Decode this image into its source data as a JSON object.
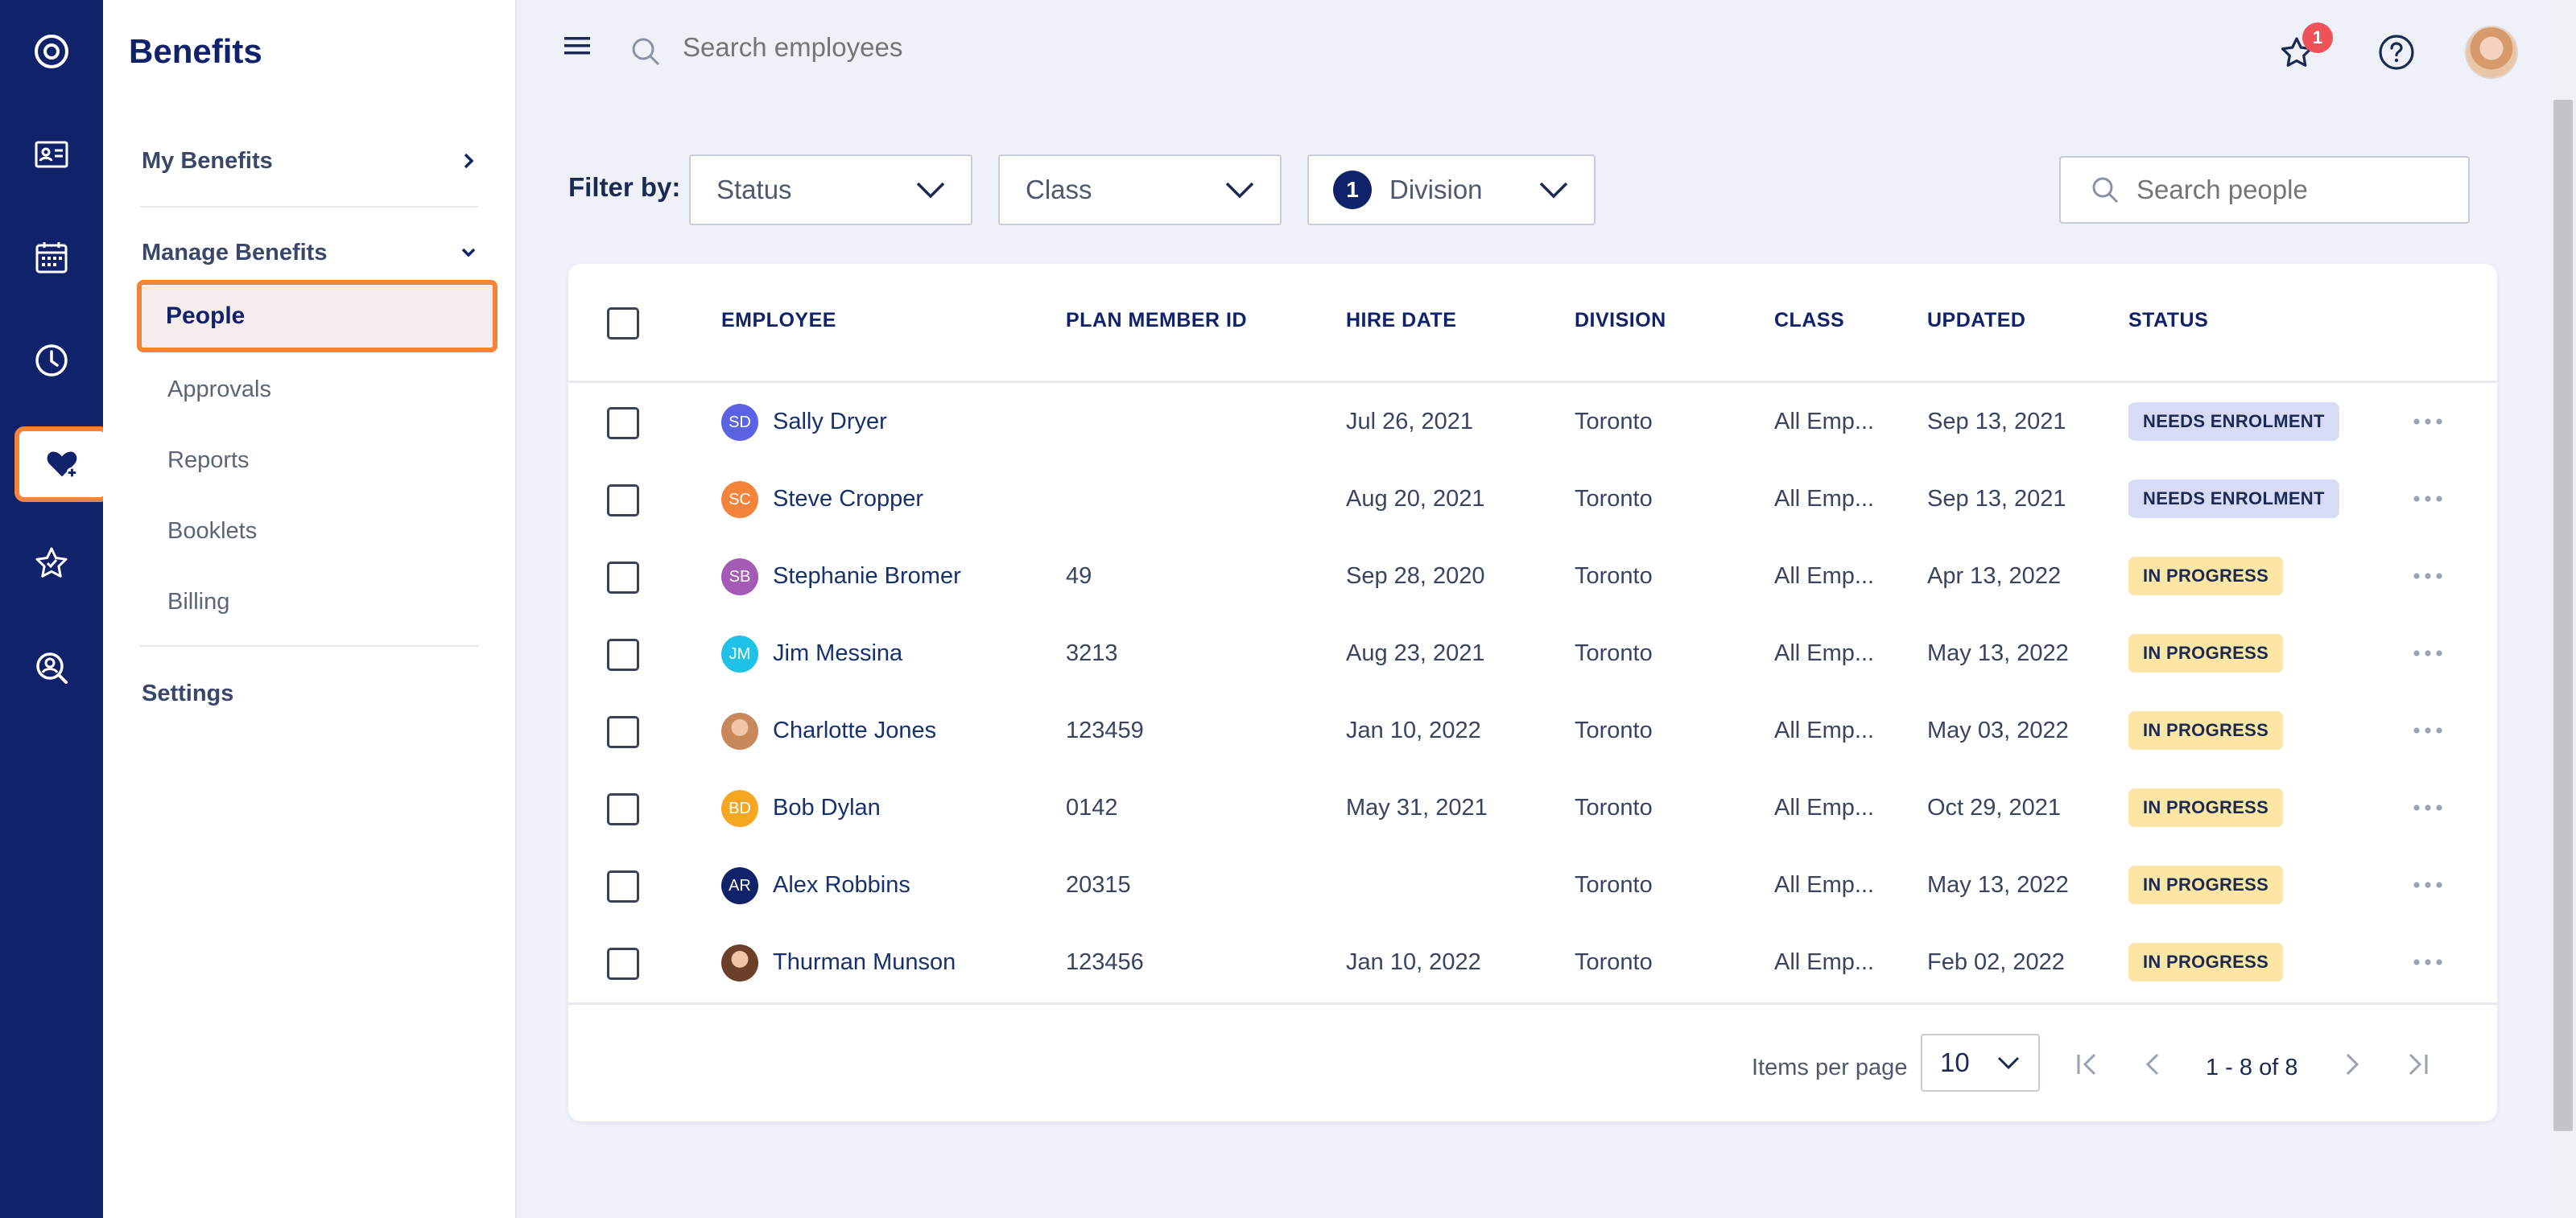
{
  "app": {
    "section_title": "Benefits"
  },
  "colors": {
    "rail": "#10226a",
    "accent": "#f4843a",
    "needs_badge": "#d8dbf5",
    "progress_badge": "#fde5a4",
    "notif": "#f0525a"
  },
  "rail": {
    "items": [
      {
        "icon": "logo-icon"
      },
      {
        "icon": "id-card-icon"
      },
      {
        "icon": "calendar-icon"
      },
      {
        "icon": "clock-icon"
      },
      {
        "icon": "heart-benefits-icon",
        "active": true
      },
      {
        "icon": "star-icon"
      },
      {
        "icon": "person-search-icon"
      }
    ]
  },
  "sidebar": {
    "my_benefits": "My Benefits",
    "manage_benefits": "Manage Benefits",
    "sub_items": [
      "People",
      "Approvals",
      "Reports",
      "Booklets",
      "Billing"
    ],
    "settings": "Settings"
  },
  "topbar": {
    "search_placeholder": "Search employees",
    "notification_count": "1"
  },
  "filters": {
    "label": "Filter by:",
    "status": "Status",
    "class": "Class",
    "division": "Division",
    "division_count": "1",
    "search_placeholder": "Search people"
  },
  "table": {
    "columns": [
      "EMPLOYEE",
      "PLAN MEMBER ID",
      "HIRE DATE",
      "DIVISION",
      "CLASS",
      "UPDATED",
      "STATUS"
    ],
    "rows": [
      {
        "initials": "SD",
        "avatar_color": "#5b63e4",
        "name": "Sally Dryer",
        "member_id": "",
        "hire_date": "Jul 26, 2021",
        "division": "Toronto",
        "class": "All Emp...",
        "updated": "Sep 13, 2021",
        "status": "NEEDS ENROLMENT",
        "status_type": "needs"
      },
      {
        "initials": "SC",
        "avatar_color": "#f4843a",
        "name": "Steve Cropper",
        "member_id": "",
        "hire_date": "Aug 20, 2021",
        "division": "Toronto",
        "class": "All Emp...",
        "updated": "Sep 13, 2021",
        "status": "NEEDS ENROLMENT",
        "status_type": "needs"
      },
      {
        "initials": "SB",
        "avatar_color": "#a45bb5",
        "name": "Stephanie Bromer",
        "member_id": "49",
        "hire_date": "Sep 28, 2020",
        "division": "Toronto",
        "class": "All Emp...",
        "updated": "Apr 13, 2022",
        "status": "IN PROGRESS",
        "status_type": "prog"
      },
      {
        "initials": "JM",
        "avatar_color": "#1fc2e6",
        "name": "Jim Messina",
        "member_id": "3213",
        "hire_date": "Aug 23, 2021",
        "division": "Toronto",
        "class": "All Emp...",
        "updated": "May 13, 2022",
        "status": "IN PROGRESS",
        "status_type": "prog"
      },
      {
        "initials": "",
        "avatar_color": "#c9875c",
        "name": "Charlotte Jones",
        "member_id": "123459",
        "hire_date": "Jan 10, 2022",
        "division": "Toronto",
        "class": "All Emp...",
        "updated": "May 03, 2022",
        "status": "IN PROGRESS",
        "status_type": "prog",
        "photo": true
      },
      {
        "initials": "BD",
        "avatar_color": "#f5a623",
        "name": "Bob Dylan",
        "member_id": "0142",
        "hire_date": "May 31, 2021",
        "division": "Toronto",
        "class": "All Emp...",
        "updated": "Oct 29, 2021",
        "status": "IN PROGRESS",
        "status_type": "prog"
      },
      {
        "initials": "AR",
        "avatar_color": "#10226a",
        "name": "Alex Robbins",
        "member_id": "20315",
        "hire_date": "",
        "division": "Toronto",
        "class": "All Emp...",
        "updated": "May 13, 2022",
        "status": "IN PROGRESS",
        "status_type": "prog"
      },
      {
        "initials": "",
        "avatar_color": "#6b3f2a",
        "name": "Thurman Munson",
        "member_id": "123456",
        "hire_date": "Jan 10, 2022",
        "division": "Toronto",
        "class": "All Emp...",
        "updated": "Feb 02, 2022",
        "status": "IN PROGRESS",
        "status_type": "prog",
        "photo": true
      }
    ]
  },
  "pagination": {
    "items_per_page_label": "Items per page",
    "items_per_page": "10",
    "range": "1 - 8 of 8"
  }
}
